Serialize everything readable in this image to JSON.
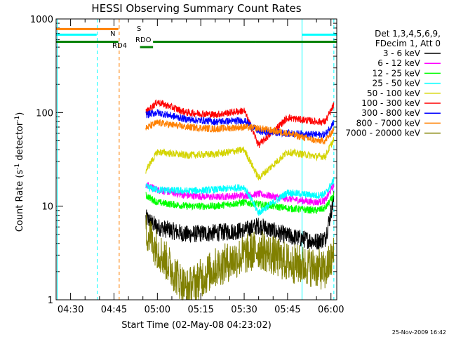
{
  "chart_data": {
    "type": "line",
    "title": "HESSI Observing Summary Count Rates",
    "xlabel": "Start Time (02-May-08 04:23:02)",
    "ylabel_main": "Count Rate (s",
    "ylabel_sup1": "-1",
    "ylabel_mid": " detector",
    "ylabel_sup2": "-1",
    "ylabel_end": ")",
    "y_scale": "log",
    "ylim": [
      1,
      1000
    ],
    "xlim_minutes_of_day": [
      265,
      362
    ],
    "x_ticks": [
      {
        "label": "04:30",
        "t": 270
      },
      {
        "label": "04:45",
        "t": 285
      },
      {
        "label": "05:00",
        "t": 300
      },
      {
        "label": "05:15",
        "t": 315
      },
      {
        "label": "05:30",
        "t": 330
      },
      {
        "label": "05:45",
        "t": 345
      },
      {
        "label": "06:00",
        "t": 360
      }
    ],
    "y_ticks": [
      {
        "label": "1",
        "v": 1
      },
      {
        "label": "10",
        "v": 10
      },
      {
        "label": "100",
        "v": 100
      },
      {
        "label": "1000",
        "v": 1000
      }
    ],
    "legend_header": [
      "Det 1,3,4,5,6,9,",
      "FDecim 1, Att 0"
    ],
    "legend_position": "top-right",
    "series": [
      {
        "name": "3 - 6 keV",
        "color": "#000000",
        "values": [
          [
            296,
            7.5
          ],
          [
            300,
            6
          ],
          [
            310,
            5
          ],
          [
            320,
            5.2
          ],
          [
            330,
            5.5
          ],
          [
            335,
            6.2
          ],
          [
            345,
            4.8
          ],
          [
            355,
            4.2
          ],
          [
            358,
            4.5
          ],
          [
            361,
            12
          ]
        ]
      },
      {
        "name": "6 - 12 keV",
        "color": "#ff00ff",
        "values": [
          [
            296,
            17
          ],
          [
            300,
            15
          ],
          [
            310,
            13
          ],
          [
            320,
            12.5
          ],
          [
            330,
            13
          ],
          [
            335,
            13.5
          ],
          [
            345,
            12
          ],
          [
            355,
            11
          ],
          [
            358,
            11.5
          ],
          [
            361,
            17
          ]
        ]
      },
      {
        "name": "12 - 25 keV",
        "color": "#00ff00",
        "values": [
          [
            296,
            13
          ],
          [
            300,
            11
          ],
          [
            310,
            10
          ],
          [
            320,
            10
          ],
          [
            330,
            11
          ],
          [
            335,
            10.5
          ],
          [
            345,
            9.5
          ],
          [
            355,
            9
          ],
          [
            358,
            9.5
          ],
          [
            361,
            13
          ]
        ]
      },
      {
        "name": "25 - 50 keV",
        "color": "#00ffff",
        "values": [
          [
            296,
            16
          ],
          [
            300,
            15
          ],
          [
            310,
            14.5
          ],
          [
            320,
            15
          ],
          [
            330,
            16
          ],
          [
            335,
            8.5
          ],
          [
            345,
            14
          ],
          [
            355,
            13
          ],
          [
            358,
            13.5
          ],
          [
            361,
            19
          ]
        ]
      },
      {
        "name": "50 - 100 keV",
        "color": "#d4d400",
        "values": [
          [
            296,
            24
          ],
          [
            300,
            38
          ],
          [
            310,
            35
          ],
          [
            320,
            36
          ],
          [
            330,
            40
          ],
          [
            335,
            20
          ],
          [
            345,
            38
          ],
          [
            355,
            34
          ],
          [
            358,
            34
          ],
          [
            361,
            52
          ]
        ]
      },
      {
        "name": "100 - 300 keV",
        "color": "#ff0000",
        "values": [
          [
            296,
            100
          ],
          [
            300,
            130
          ],
          [
            310,
            100
          ],
          [
            320,
            95
          ],
          [
            330,
            105
          ],
          [
            335,
            45
          ],
          [
            345,
            88
          ],
          [
            355,
            80
          ],
          [
            358,
            80
          ],
          [
            361,
            120
          ]
        ]
      },
      {
        "name": "300 - 800 keV",
        "color": "#0000ff",
        "values": [
          [
            296,
            95
          ],
          [
            300,
            100
          ],
          [
            310,
            85
          ],
          [
            320,
            80
          ],
          [
            330,
            82
          ],
          [
            335,
            63
          ],
          [
            345,
            60
          ],
          [
            355,
            58
          ],
          [
            358,
            58
          ],
          [
            361,
            80
          ]
        ]
      },
      {
        "name": "800 - 7000 keV",
        "color": "#ff8000",
        "values": [
          [
            296,
            68
          ],
          [
            300,
            78
          ],
          [
            310,
            70
          ],
          [
            320,
            67
          ],
          [
            330,
            70
          ],
          [
            335,
            68
          ],
          [
            345,
            60
          ],
          [
            355,
            50
          ],
          [
            358,
            50
          ],
          [
            361,
            66
          ]
        ]
      },
      {
        "name": "7000 - 20000 keV",
        "color": "#808000",
        "values": [
          [
            296,
            5.5
          ],
          [
            300,
            3.5
          ],
          [
            310,
            1.3
          ],
          [
            320,
            2.2
          ],
          [
            330,
            3
          ],
          [
            335,
            3.5
          ],
          [
            345,
            2.5
          ],
          [
            355,
            2.2
          ],
          [
            358,
            2
          ],
          [
            361,
            3
          ]
        ]
      }
    ],
    "flags": [
      {
        "label": "S",
        "color": "#ff8000",
        "y": 780,
        "segments": [
          [
            265,
            286.5
          ]
        ]
      },
      {
        "label": "N",
        "color": "#00ffff",
        "y": 680,
        "segments": [
          [
            265,
            279
          ],
          [
            350,
            362
          ]
        ]
      },
      {
        "label": "RDO",
        "color": "#008000",
        "y": 570,
        "segments": [
          [
            265,
            286.5
          ],
          [
            298.5,
            334
          ],
          [
            334,
            346
          ],
          [
            346,
            362
          ]
        ]
      },
      {
        "label": "RD4",
        "color": "#008000",
        "y": 500,
        "segments": [
          [
            294,
            298.5
          ]
        ]
      }
    ],
    "vlines": [
      {
        "t": 265.4,
        "color": "#00ffff",
        "style": "solid"
      },
      {
        "t": 279.2,
        "color": "#00ffff",
        "style": "dashed"
      },
      {
        "t": 286.8,
        "color": "#ff8000",
        "style": "dashed"
      },
      {
        "t": 350.0,
        "color": "#00ffff",
        "style": "solid"
      },
      {
        "t": 361.0,
        "color": "#00ffff",
        "style": "dashed"
      }
    ]
  },
  "footer_timestamp": "25-Nov-2009 16:42"
}
